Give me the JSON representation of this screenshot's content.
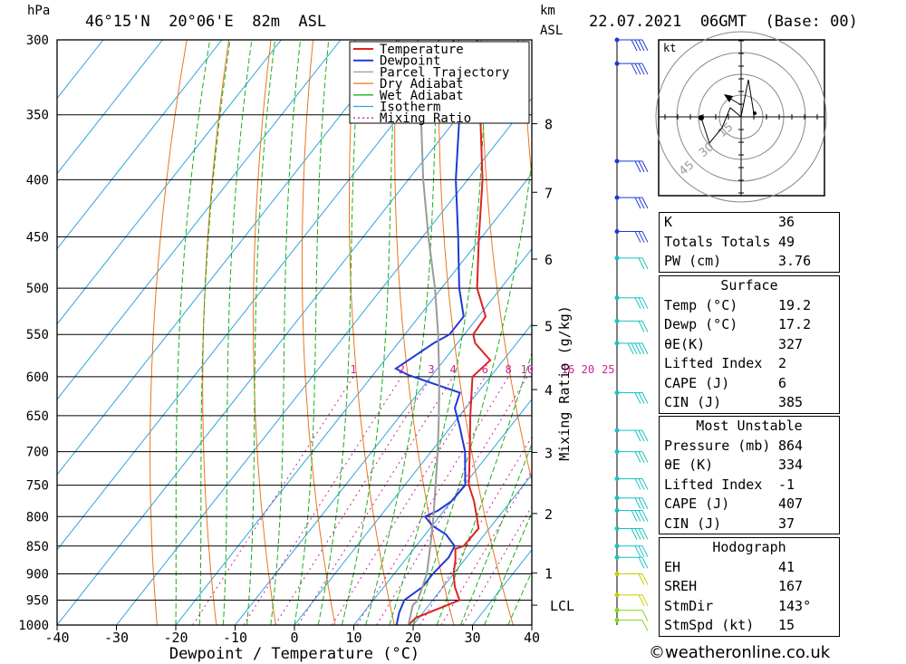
{
  "header": {
    "location": "46°15'N  20°06'E  82m  ASL",
    "datetime": "22.07.2021  06GMT  (Base: 00)",
    "hpa_unit": "hPa",
    "km_unit": "km",
    "asl_unit": "ASL"
  },
  "footer": {
    "copyright": "©weatheronline.co.uk"
  },
  "chart_data": [
    {
      "type": "line",
      "subtype": "skew-t log-p",
      "xlabel": "Dewpoint / Temperature (°C)",
      "ylabel": "hPa",
      "xlim": [
        -40,
        40
      ],
      "ylim": [
        1000,
        300
      ],
      "y_scale": "log",
      "x_ticks": [
        "-40",
        "-30",
        "-20",
        "-10",
        "0",
        "10",
        "20",
        "30",
        "40"
      ],
      "y_ticks": [
        "300",
        "350",
        "400",
        "450",
        "500",
        "550",
        "600",
        "650",
        "700",
        "750",
        "800",
        "850",
        "900",
        "950",
        "1000"
      ],
      "km_ticks": [
        "1",
        "2",
        "3",
        "4",
        "5",
        "6",
        "7",
        "8"
      ],
      "lcl_label": "LCL",
      "mixing_ratio_axis_label": "Mixing Ratio (g/kg)",
      "mixing_ratio_labels": [
        "1",
        "2",
        "3",
        "4",
        "6",
        "8",
        "10",
        "16",
        "20",
        "25"
      ],
      "legend_position": "top-right",
      "legend": [
        "Temperature",
        "Dewpoint",
        "Parcel Trajectory",
        "Dry Adiabat",
        "Wet Adiabat",
        "Isotherm",
        "Mixing Ratio"
      ],
      "colors": {
        "temperature": "#dd2222",
        "dewpoint": "#1e3ad6",
        "parcel": "#9a9a9a",
        "dry_adiabat": "#e8771e",
        "wet_adiabat": "#18b018",
        "isotherm": "#2fa4e0",
        "mixing_ratio": "#cc2299"
      },
      "series": [
        {
          "name": "Temperature",
          "p": [
            1000,
            985,
            950,
            925,
            900,
            875,
            855,
            850,
            820,
            800,
            775,
            750,
            700,
            650,
            600,
            580,
            560,
            550,
            530,
            500,
            450,
            400,
            350,
            300
          ],
          "t": [
            19.2,
            19.5,
            24.5,
            22,
            20,
            18.5,
            17,
            18,
            18.2,
            16.3,
            13.8,
            10.8,
            6.5,
            1.8,
            -3,
            -2.2,
            -7,
            -8.5,
            -8.8,
            -14,
            -20.5,
            -27.5,
            -36.5,
            -47
          ]
        },
        {
          "name": "Dewpoint",
          "p": [
            1000,
            975,
            950,
            925,
            900,
            870,
            850,
            830,
            815,
            800,
            790,
            775,
            750,
            700,
            665,
            640,
            620,
            598,
            590,
            560,
            550,
            530,
            500,
            450,
            400,
            350,
            300
          ],
          "t": [
            17.2,
            16,
            15.2,
            16.5,
            16.5,
            17,
            16.5,
            13.5,
            10,
            7.6,
            9,
            10,
            10.2,
            5.7,
            1.5,
            -1.8,
            -3,
            -14,
            -17,
            -14,
            -12.5,
            -12.5,
            -17,
            -24,
            -32,
            -40,
            -51
          ]
        },
        {
          "name": "Parcel Trajectory",
          "p": [
            1000,
            960,
            950,
            900,
            850,
            800,
            750,
            700,
            650,
            600,
            550,
            500,
            450,
            400,
            350,
            300
          ],
          "t": [
            19.2,
            17.3,
            17.5,
            15.5,
            12.4,
            9,
            5.2,
            1.1,
            -3.5,
            -8.6,
            -14.4,
            -21.1,
            -29,
            -37.5,
            -46.5,
            -57
          ]
        }
      ]
    },
    {
      "type": "scatter",
      "subtype": "hodograph",
      "unit_label": "kt",
      "ring_labels": [
        "15",
        "30",
        "45"
      ],
      "points_u": [
        7,
        -1,
        -7,
        0,
        3,
        5,
        9
      ],
      "points_v": [
        0,
        12,
        10,
        0,
        20,
        14,
        20
      ]
    }
  ],
  "indices": {
    "k": {
      "label": "K",
      "value": "36"
    },
    "tt": {
      "label": "Totals Totals",
      "value": "49"
    },
    "pw": {
      "label": "PW (cm)",
      "value": "3.76"
    }
  },
  "surface": {
    "title": "Surface",
    "rows": [
      {
        "label": "Temp (°C)",
        "value": "19.2"
      },
      {
        "label": "Dewp (°C)",
        "value": "17.2"
      },
      {
        "label": "θE(K)",
        "value": "327"
      },
      {
        "label": "Lifted Index",
        "value": "2"
      },
      {
        "label": "CAPE (J)",
        "value": "6"
      },
      {
        "label": "CIN (J)",
        "value": "385"
      }
    ]
  },
  "most_unstable": {
    "title": "Most Unstable",
    "rows": [
      {
        "label": "Pressure (mb)",
        "value": "864"
      },
      {
        "label": "θE (K)",
        "value": "334"
      },
      {
        "label": "Lifted Index",
        "value": "-1"
      },
      {
        "label": "CAPE (J)",
        "value": "407"
      },
      {
        "label": "CIN (J)",
        "value": "37"
      }
    ]
  },
  "hodograph_stats": {
    "title": "Hodograph",
    "rows": [
      {
        "label": "EH",
        "value": "41"
      },
      {
        "label": "SREH",
        "value": "167"
      },
      {
        "label": "StmDir",
        "value": "143°"
      },
      {
        "label": "StmSpd (kt)",
        "value": "15"
      }
    ]
  },
  "wind_profile": {
    "p": [
      300,
      315,
      385,
      415,
      445,
      470,
      510,
      535,
      560,
      620,
      670,
      700,
      740,
      770,
      790,
      820,
      850,
      870,
      900,
      940,
      970,
      990
    ],
    "speed_kt": [
      40,
      35,
      25,
      30,
      25,
      20,
      25,
      20,
      45,
      30,
      30,
      30,
      25,
      30,
      35,
      40,
      30,
      20,
      20,
      15,
      10,
      10
    ],
    "dir_deg": [
      270,
      260,
      245,
      250,
      245,
      245,
      250,
      245,
      255,
      270,
      260,
      260,
      255,
      265,
      250,
      240,
      230,
      200,
      170,
      150,
      140,
      120
    ]
  }
}
